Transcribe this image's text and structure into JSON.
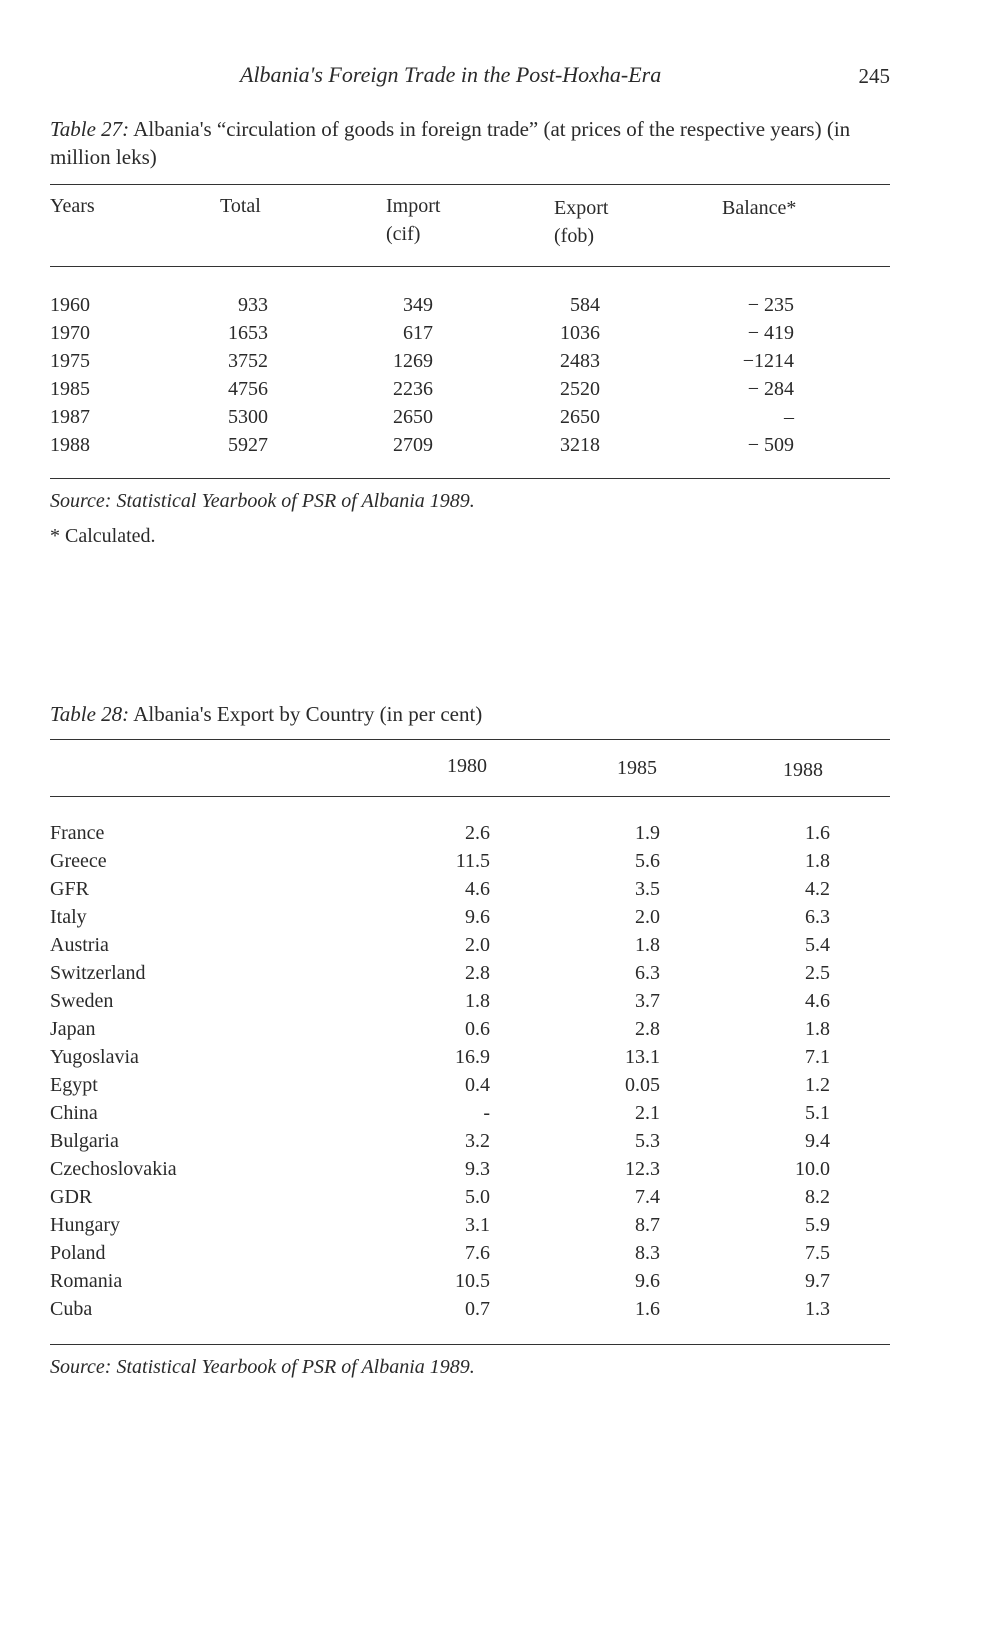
{
  "running_head": {
    "title": "Albania's Foreign Trade in the Post-Hoxha-Era",
    "page_number": "245"
  },
  "table27": {
    "label": "Table 27:",
    "caption": "Albania's “circulation of goods in foreign trade” (at prices of the respective years) (in million leks)",
    "headers": {
      "years": "Years",
      "total": "Total",
      "import_l1": "Import",
      "import_l2": "(cif)",
      "export_l1": "Export",
      "export_l2": "(fob)",
      "balance": "Balance*"
    },
    "rows": [
      {
        "year": "1960",
        "total": "933",
        "import": "349",
        "export": "584",
        "balance": "− 235"
      },
      {
        "year": "1970",
        "total": "1653",
        "import": "617",
        "export": "1036",
        "balance": "− 419"
      },
      {
        "year": "1975",
        "total": "3752",
        "import": "1269",
        "export": "2483",
        "balance": "−1214"
      },
      {
        "year": "1985",
        "total": "4756",
        "import": "2236",
        "export": "2520",
        "balance": "− 284"
      },
      {
        "year": "1987",
        "total": "5300",
        "import": "2650",
        "export": "2650",
        "balance": "–"
      },
      {
        "year": "1988",
        "total": "5927",
        "import": "2709",
        "export": "3218",
        "balance": "− 509"
      }
    ],
    "source": "Source: Statistical Yearbook of PSR of Albania 1989.",
    "note": "* Calculated."
  },
  "table28": {
    "label": "Table 28:",
    "caption": "Albania's Export by Country (in per cent)",
    "headers": {
      "y1980": "1980",
      "y1985": "1985",
      "y1988": "1988"
    },
    "rows": [
      {
        "country": "France",
        "v1980": "2.6",
        "v1985": "1.9",
        "v1988": "1.6"
      },
      {
        "country": "Greece",
        "v1980": "11.5",
        "v1985": "5.6",
        "v1988": "1.8"
      },
      {
        "country": "GFR",
        "v1980": "4.6",
        "v1985": "3.5",
        "v1988": "4.2"
      },
      {
        "country": "Italy",
        "v1980": "9.6",
        "v1985": "2.0",
        "v1988": "6.3"
      },
      {
        "country": "Austria",
        "v1980": "2.0",
        "v1985": "1.8",
        "v1988": "5.4"
      },
      {
        "country": "Switzerland",
        "v1980": "2.8",
        "v1985": "6.3",
        "v1988": "2.5"
      },
      {
        "country": "Sweden",
        "v1980": "1.8",
        "v1985": "3.7",
        "v1988": "4.6"
      },
      {
        "country": "Japan",
        "v1980": "0.6",
        "v1985": "2.8",
        "v1988": "1.8"
      },
      {
        "country": "Yugoslavia",
        "v1980": "16.9",
        "v1985": "13.1",
        "v1988": "7.1"
      },
      {
        "country": "Egypt",
        "v1980": "0.4",
        "v1985": "0.05",
        "v1988": "1.2"
      },
      {
        "country": "China",
        "v1980": "-",
        "v1985": "2.1",
        "v1988": "5.1"
      },
      {
        "country": "Bulgaria",
        "v1980": "3.2",
        "v1985": "5.3",
        "v1988": "9.4"
      },
      {
        "country": "Czechoslovakia",
        "v1980": "9.3",
        "v1985": "12.3",
        "v1988": "10.0"
      },
      {
        "country": "GDR",
        "v1980": "5.0",
        "v1985": "7.4",
        "v1988": "8.2"
      },
      {
        "country": "Hungary",
        "v1980": "3.1",
        "v1985": "8.7",
        "v1988": "5.9"
      },
      {
        "country": "Poland",
        "v1980": "7.6",
        "v1985": "8.3",
        "v1988": "7.5"
      },
      {
        "country": "Romania",
        "v1980": "10.5",
        "v1985": "9.6",
        "v1988": "9.7"
      },
      {
        "country": "Cuba",
        "v1980": "0.7",
        "v1985": "1.6",
        "v1988": "1.3"
      }
    ],
    "source": "Source: Statistical Yearbook of PSR of Albania 1989."
  }
}
